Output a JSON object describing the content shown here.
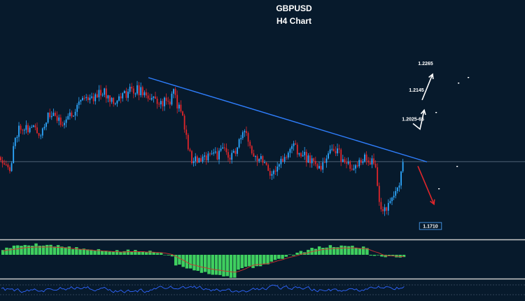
{
  "chart_data": {
    "type": "candlestick",
    "title": "GBPUSD",
    "subtitle": "H4 Chart",
    "colors": {
      "background": "#071a2c",
      "bull": "#2ea8ff",
      "bear": "#e0262b",
      "trendline": "#2f7fff",
      "separator": "#c8c8c8",
      "macd_bar": "#3fcf5f",
      "macd_signal": "#d23030",
      "rsi_line": "#2f66ff",
      "ann_text": "#ffffff",
      "ann_highlight": "#4da6ff"
    },
    "price_axis": {
      "ylim": [
        1.169,
        1.268
      ],
      "grid": false
    },
    "path": [
      [
        0,
        1.2035
      ],
      [
        10,
        1.2012
      ],
      [
        15,
        1.1955
      ],
      [
        21,
        1.2125
      ],
      [
        30,
        1.218
      ],
      [
        40,
        1.2162
      ],
      [
        48,
        1.2165
      ],
      [
        58,
        1.214
      ],
      [
        66,
        1.2205
      ],
      [
        75,
        1.223
      ],
      [
        85,
        1.2188
      ],
      [
        95,
        1.2205
      ],
      [
        105,
        1.224
      ],
      [
        113,
        1.2288
      ],
      [
        122,
        1.231
      ],
      [
        130,
        1.229
      ],
      [
        138,
        1.232
      ],
      [
        145,
        1.233
      ],
      [
        155,
        1.2305
      ],
      [
        165,
        1.229
      ],
      [
        175,
        1.231
      ],
      [
        185,
        1.233
      ],
      [
        195,
        1.234
      ],
      [
        205,
        1.232
      ],
      [
        215,
        1.23
      ],
      [
        225,
        1.2282
      ],
      [
        235,
        1.228
      ],
      [
        243,
        1.229
      ],
      [
        248,
        1.2325
      ],
      [
        255,
        1.2255
      ],
      [
        262,
        1.221
      ],
      [
        268,
        1.208
      ],
      [
        275,
        1.202
      ],
      [
        282,
        1.2025
      ],
      [
        290,
        1.2015
      ],
      [
        298,
        1.206
      ],
      [
        305,
        1.206
      ],
      [
        312,
        1.204
      ],
      [
        320,
        1.2075
      ],
      [
        328,
        1.203
      ],
      [
        335,
        1.2055
      ],
      [
        343,
        1.211
      ],
      [
        350,
        1.214
      ],
      [
        356,
        1.21
      ],
      [
        362,
        1.206
      ],
      [
        368,
        1.203
      ],
      [
        375,
        1.2035
      ],
      [
        383,
        1.1985
      ],
      [
        390,
        1.1955
      ],
      [
        397,
        1.201
      ],
      [
        404,
        1.202
      ],
      [
        410,
        1.203
      ],
      [
        416,
        1.208
      ],
      [
        422,
        1.2085
      ],
      [
        428,
        1.205
      ],
      [
        434,
        1.204
      ],
      [
        442,
        1.202
      ],
      [
        450,
        1.203
      ],
      [
        457,
        1.1965
      ],
      [
        464,
        1.2015
      ],
      [
        470,
        1.205
      ],
      [
        476,
        1.2085
      ],
      [
        482,
        1.206
      ],
      [
        490,
        1.202
      ],
      [
        497,
        1.1995
      ],
      [
        504,
        1.1965
      ],
      [
        510,
        1.199
      ],
      [
        516,
        1.2025
      ],
      [
        522,
        1.2035
      ],
      [
        528,
        1.202
      ],
      [
        536,
        1.201
      ],
      [
        540,
        1.188
      ],
      [
        545,
        1.1815
      ],
      [
        552,
        1.179
      ],
      [
        558,
        1.1835
      ],
      [
        566,
        1.1895
      ],
      [
        572,
        1.194
      ],
      [
        578,
        1.2035
      ]
    ],
    "candle_seed": 11,
    "trendline": {
      "start": [
        212,
        1.239
      ],
      "end": [
        610,
        1.2014
      ]
    },
    "horizontal_level": 1.2015,
    "annotations": [
      {
        "label": "1.2265",
        "at": [
          608,
          1.2445
        ],
        "highlight": false
      },
      {
        "label": "1.2145",
        "at": [
          595,
          1.2327
        ],
        "highlight": false
      },
      {
        "label": "1.2025-65",
        "at": [
          590,
          1.2198
        ],
        "highlight": true
      },
      {
        "label": "1.1710",
        "at": [
          615,
          1.172
        ],
        "highlight": true,
        "boxed": true
      }
    ],
    "arrows": [
      {
        "color": "white",
        "from": [
          603,
          1.229
        ],
        "to": [
          618,
          1.2405
        ]
      },
      {
        "color": "white",
        "from": [
          590,
          1.2185
        ],
        "to": [
          606,
          1.2245
        ],
        "via": [
          600,
          1.216
        ]
      },
      {
        "color": "red",
        "from": [
          597,
          1.1995
        ],
        "to": [
          620,
          1.1825
        ]
      }
    ],
    "macd": {
      "type": "histogram",
      "samples": 110,
      "seed": 5
    },
    "rsi": {
      "type": "line",
      "samples": 220,
      "seed": 9
    }
  }
}
